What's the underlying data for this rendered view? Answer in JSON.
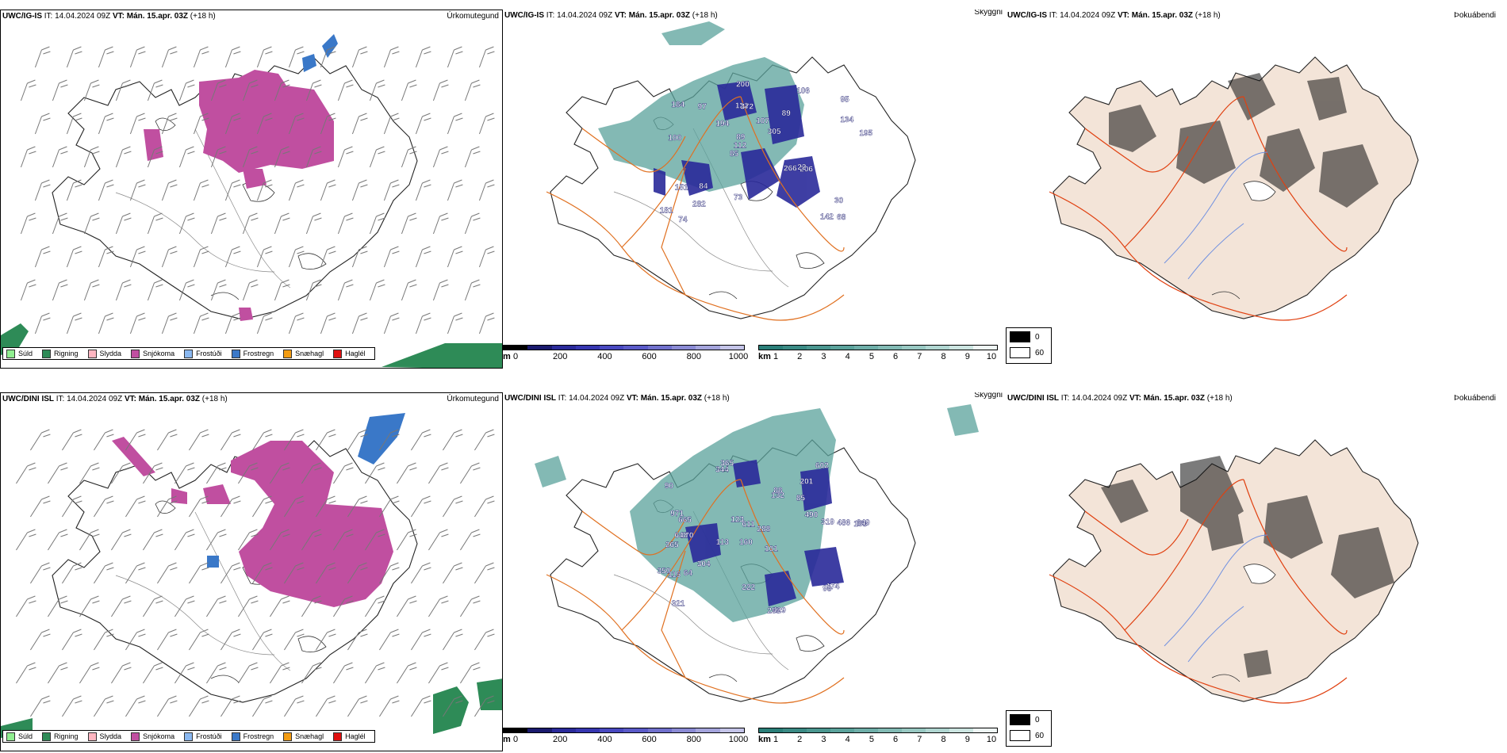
{
  "rows": [
    {
      "model": "UWC/IG-IS",
      "it_label": "IT:",
      "it_value": "14.04.2024 09Z",
      "vt_label": "VT:",
      "vt_value": "Mán. 15.apr. 03Z",
      "lead": "(+18 h)"
    },
    {
      "model": "UWC/DINI ISL",
      "it_label": "IT:",
      "it_value": "14.04.2024 09Z",
      "vt_label": "VT:",
      "vt_value": "Mán. 15.apr. 03Z",
      "lead": "(+18 h)"
    }
  ],
  "panel_titles": {
    "precip": "Úrkomutegund",
    "visibility": "Skyggni",
    "fog": "Þokuábendi"
  },
  "precip_legend": [
    {
      "label": "Súld",
      "color": "#90ee90"
    },
    {
      "label": "Rigning",
      "color": "#2e8b57"
    },
    {
      "label": "Slydda",
      "color": "#ffb6c1"
    },
    {
      "label": "Snjókoma",
      "color": "#c04fa0"
    },
    {
      "label": "Frostúði",
      "color": "#8ab8f0"
    },
    {
      "label": "Frostregn",
      "color": "#3a78c8"
    },
    {
      "label": "Snæhagl",
      "color": "#f39c12"
    },
    {
      "label": "Haglél",
      "color": "#e01010"
    }
  ],
  "ceiling_bar": {
    "unit": "m",
    "ticks": [
      "0",
      "200",
      "400",
      "600",
      "800",
      "1000"
    ],
    "colors": [
      "#000000",
      "#1a1a6e",
      "#2a2a9a",
      "#3636b0",
      "#4848c0",
      "#5a5ac8",
      "#7070cc",
      "#8a8ad4",
      "#a4a4dc",
      "#c4c4e8"
    ]
  },
  "visibility_bar": {
    "unit": "km",
    "ticks": [
      "1",
      "2",
      "3",
      "4",
      "5",
      "6",
      "7",
      "8",
      "9",
      "10"
    ],
    "colors": [
      "#2a7e78",
      "#3a8a84",
      "#4a968f",
      "#5aa29b",
      "#6eaea8",
      "#82bab4",
      "#98c8c2",
      "#b0d6d1",
      "#cce5e1",
      "#eef7f5"
    ]
  },
  "fog_legend": [
    {
      "label": "0",
      "color": "#000000"
    },
    {
      "label": "60",
      "color": "#ffffff"
    }
  ],
  "ceiling_labels_row1": [
    "68",
    "100",
    "95",
    "85",
    "89",
    "74",
    "122",
    "107",
    "151",
    "194",
    "181",
    "282",
    "372",
    "305",
    "206",
    "184",
    "200",
    "195",
    "266",
    "134",
    "112",
    "73",
    "89",
    "97",
    "106",
    "84",
    "142",
    "30",
    "22"
  ],
  "ceiling_labels_row2": [
    "365",
    "201",
    "158",
    "160",
    "101",
    "170",
    "90",
    "85",
    "265",
    "132",
    "288",
    "321",
    "344",
    "113",
    "295",
    "429",
    "222",
    "602",
    "490",
    "304",
    "665",
    "648",
    "649",
    "486",
    "350",
    "971",
    "611",
    "319",
    "174",
    "115",
    "98",
    "88",
    "64",
    "123"
  ]
}
